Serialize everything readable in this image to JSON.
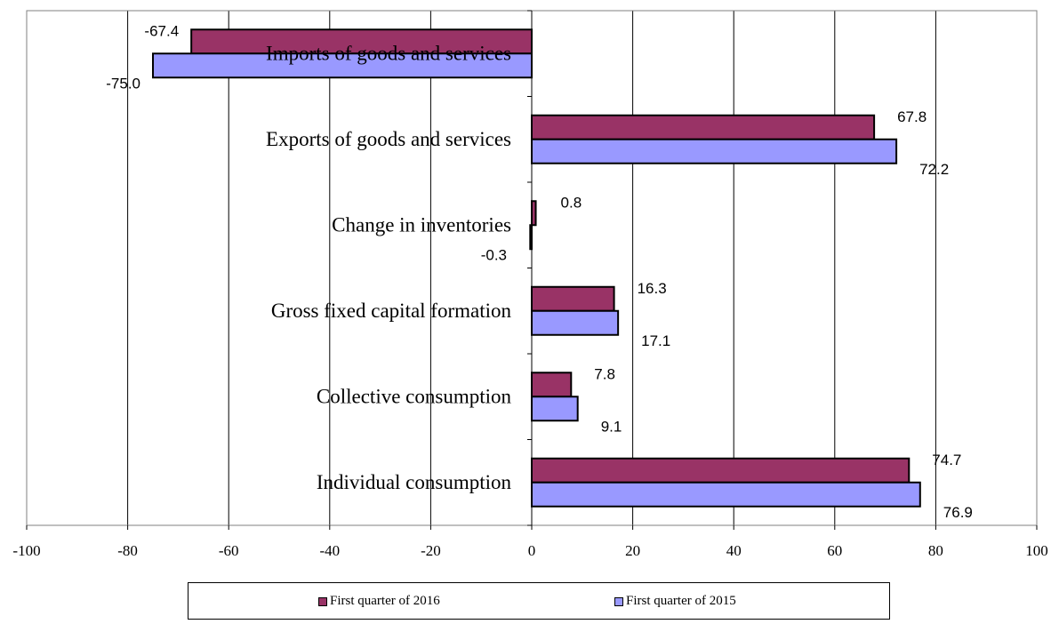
{
  "chart_data": {
    "type": "bar",
    "orientation": "horizontal",
    "categories": [
      "Imports of goods and services",
      "Exports of goods and services",
      "Change in inventories",
      "Gross fixed capital formation",
      "Collective consumption",
      "Individual consumption"
    ],
    "series": [
      {
        "name": "First quarter of 2016",
        "color": "#993366",
        "values": [
          -67.4,
          67.8,
          0.8,
          16.3,
          7.8,
          74.7
        ]
      },
      {
        "name": "First quarter of 2015",
        "color": "#9999FF",
        "values": [
          -75.0,
          72.2,
          -0.3,
          17.1,
          9.1,
          76.9
        ]
      }
    ],
    "value_labels": [
      [
        "-67.4",
        "67.8",
        "0.8",
        "16.3",
        "7.8",
        "74.7"
      ],
      [
        "-75.0",
        "72.2",
        "-0.3",
        "17.1",
        "9.1",
        "76.9"
      ]
    ],
    "xlim": [
      -100,
      100
    ],
    "xticks": [
      -100,
      -80,
      -60,
      -40,
      -20,
      0,
      20,
      40,
      60,
      80,
      100
    ],
    "xtick_labels": [
      "-100",
      "-80",
      "-60",
      "-40",
      "-20",
      "0",
      "20",
      "40",
      "60",
      "80",
      "100"
    ],
    "grid": "vertical",
    "legend_position": "bottom",
    "title": "",
    "xlabel": "",
    "ylabel": ""
  }
}
